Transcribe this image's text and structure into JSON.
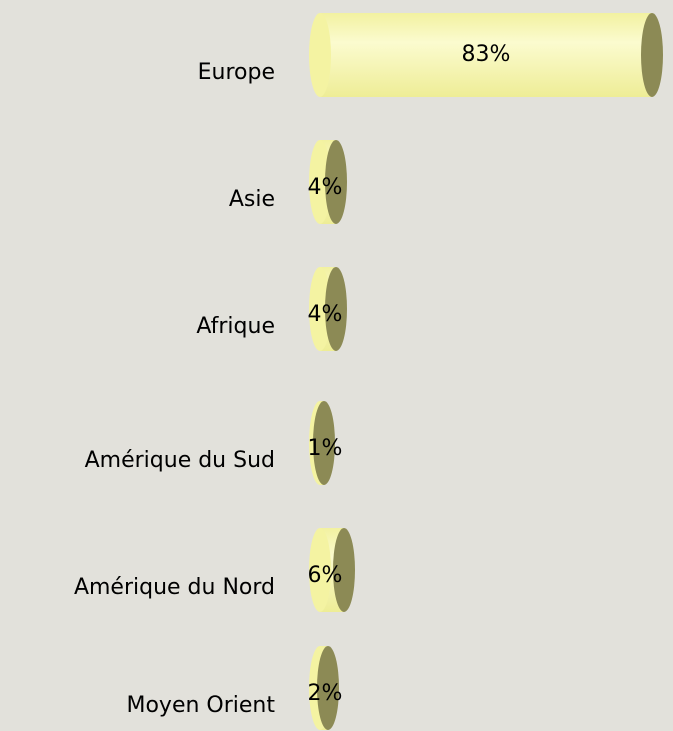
{
  "chart_data": {
    "type": "bar",
    "orientation": "horizontal",
    "categories": [
      "Europe",
      "Asie",
      "Afrique",
      "Amérique du Sud",
      "Amérique du Nord",
      "Moyen Orient"
    ],
    "values": [
      83,
      4,
      4,
      1,
      6,
      2
    ],
    "value_labels": [
      "83%",
      "4%",
      "4%",
      "1%",
      "6%",
      "2%"
    ],
    "color": "#f4f3a2",
    "xlim": [
      0,
      85
    ]
  }
}
